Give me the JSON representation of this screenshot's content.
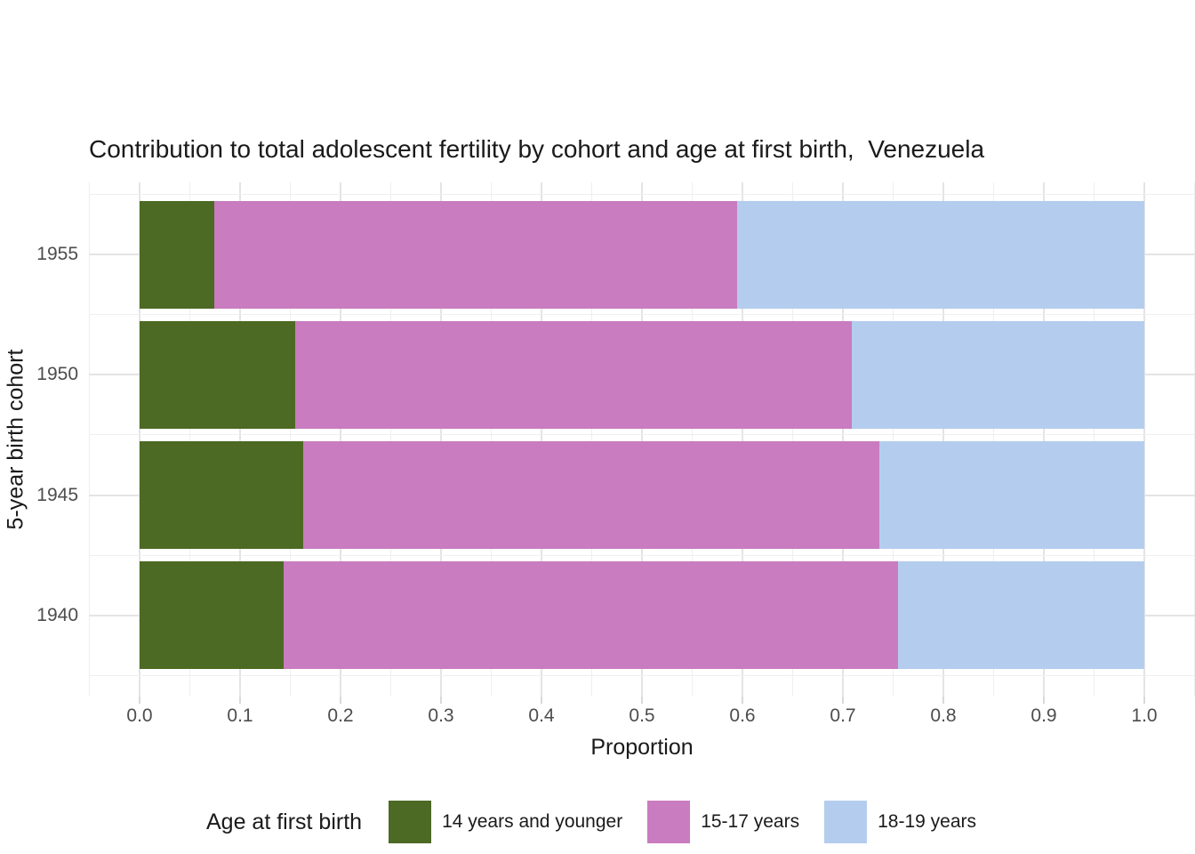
{
  "chart_data": {
    "type": "bar",
    "orientation": "horizontal",
    "stacked": true,
    "title": "Contribution to total adolescent fertility by cohort and age at first birth,  Venezuela",
    "xlabel": "Proportion",
    "ylabel": "5-year birth cohort",
    "categories": [
      "1955",
      "1950",
      "1945",
      "1940"
    ],
    "series": [
      {
        "name": "14 years and younger",
        "color": "#4C6A23",
        "values": [
          0.074,
          0.155,
          0.163,
          0.143
        ]
      },
      {
        "name": "15-17 years",
        "color": "#C97CBF",
        "values": [
          0.521,
          0.554,
          0.573,
          0.612
        ]
      },
      {
        "name": "18-19 years",
        "color": "#B4CDEE",
        "values": [
          0.405,
          0.291,
          0.264,
          0.245
        ]
      }
    ],
    "xlim": [
      0,
      1
    ],
    "x_ticks": [
      "0.0",
      "0.1",
      "0.2",
      "0.3",
      "0.4",
      "0.5",
      "0.6",
      "0.7",
      "0.8",
      "0.9",
      "1.0"
    ],
    "grid": true,
    "legend": {
      "title": "Age at first birth",
      "position": "bottom"
    }
  },
  "colors": {
    "grid_major": "#e4e4e4",
    "grid_minor": "#efefef",
    "tick_mark": "#d9d9d9",
    "axis_text": "#4d4d4d",
    "title_text": "#1a1a1a",
    "background": "#ffffff"
  }
}
